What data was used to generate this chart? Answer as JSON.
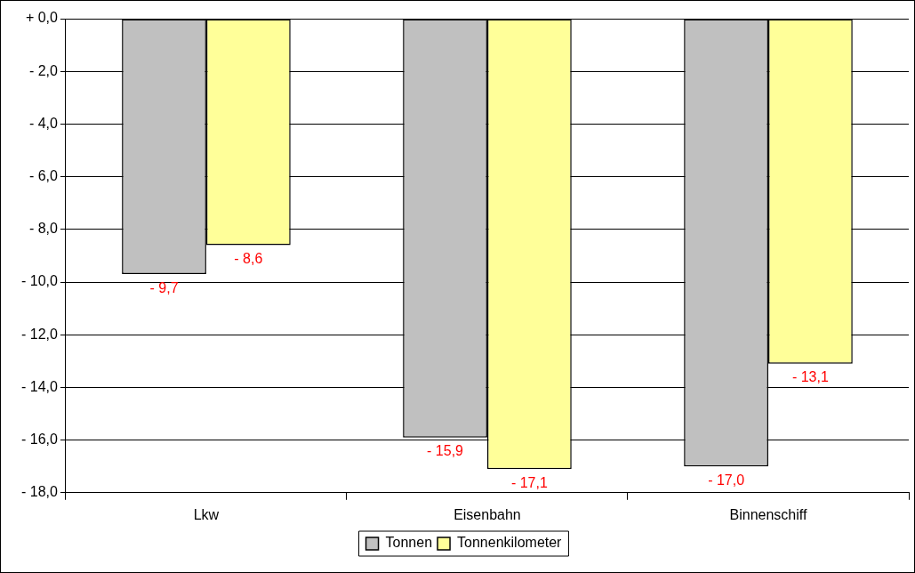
{
  "chart_data": {
    "type": "bar",
    "categories": [
      "Lkw",
      "Eisenbahn",
      "Binnenschiff"
    ],
    "series": [
      {
        "name": "Tonnen",
        "color": "#c0c0c0",
        "values": [
          -9.7,
          -15.9,
          -17.0
        ],
        "value_labels": [
          "- 9,7",
          "- 15,9",
          "- 17,0"
        ]
      },
      {
        "name": "Tonnenkilometer",
        "color": "#ffff99",
        "values": [
          -8.6,
          -17.1,
          -13.1
        ],
        "value_labels": [
          "- 8,6",
          "- 17,1",
          "- 13,1"
        ]
      }
    ],
    "ylim": [
      -18,
      0
    ],
    "yticks": [
      {
        "value": 0,
        "label": "+ 0,0"
      },
      {
        "value": -2,
        "label": "- 2,0"
      },
      {
        "value": -4,
        "label": "- 4,0"
      },
      {
        "value": -6,
        "label": "- 6,0"
      },
      {
        "value": -8,
        "label": "- 8,0"
      },
      {
        "value": -10,
        "label": "- 10,0"
      },
      {
        "value": -12,
        "label": "- 12,0"
      },
      {
        "value": -14,
        "label": "- 14,0"
      },
      {
        "value": -16,
        "label": "- 16,0"
      },
      {
        "value": -18,
        "label": "- 18,0"
      }
    ],
    "grid": "y",
    "legend": "bottom"
  }
}
